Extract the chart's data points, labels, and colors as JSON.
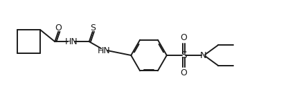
{
  "bg_color": "#ffffff",
  "line_color": "#1a1a1a",
  "line_width": 1.4,
  "fig_width": 4.42,
  "fig_height": 1.62,
  "dpi": 100,
  "xlim": [
    0,
    44.2
  ],
  "ylim": [
    0,
    16.2
  ]
}
